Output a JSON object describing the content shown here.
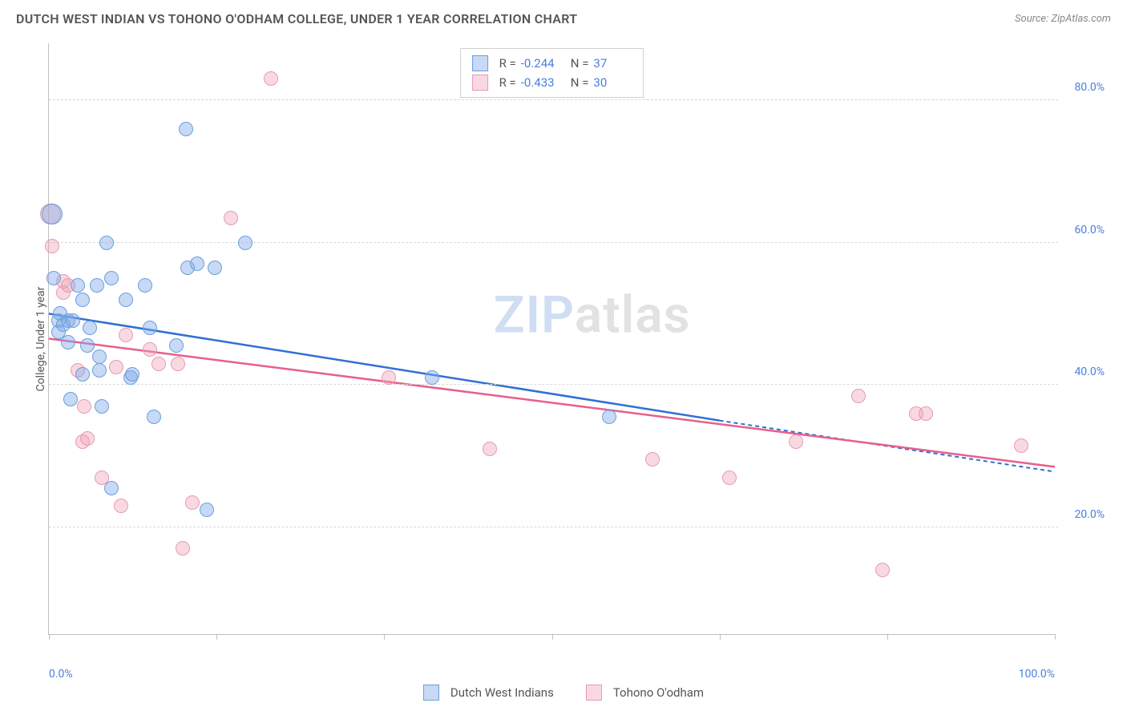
{
  "header": {
    "title": "DUTCH WEST INDIAN VS TOHONO O'ODHAM COLLEGE, UNDER 1 YEAR CORRELATION CHART",
    "source": "Source: ZipAtlas.com"
  },
  "chart": {
    "type": "scatter",
    "ylabel": "College, Under 1 year",
    "background_color": "#ffffff",
    "grid_color": "#d8d8d8",
    "axis_color": "#c0c0c0",
    "label_fontsize": 14,
    "tick_color": "#4a7fe0",
    "title_fontsize": 16,
    "xlim": [
      0,
      105
    ],
    "ylim": [
      5,
      88
    ],
    "yticks": [
      20,
      40,
      60,
      80
    ],
    "ytick_labels": [
      "20.0%",
      "40.0%",
      "60.0%",
      "80.0%"
    ],
    "xticks": [
      0,
      17.5,
      35,
      52.5,
      70,
      87.5,
      105
    ],
    "xtick_labels": [
      "0.0%",
      "",
      "",
      "",
      "",
      "",
      "100.0%"
    ],
    "watermark": {
      "part1": "ZIP",
      "part2": "atlas"
    },
    "series": [
      {
        "name": "Dutch West Indians",
        "color_fill": "rgba(130, 170, 230, 0.45)",
        "color_stroke": "#6a9fe0",
        "line_color": "#2f6fd6",
        "line_width": 2.5,
        "marker_radius": 9,
        "regression": {
          "x1": 0,
          "y1": 50,
          "x2": 70,
          "y2": 35,
          "dash_x1": 70,
          "dash_y1": 35,
          "dash_x2": 105,
          "dash_y2": 27.8
        },
        "stats": {
          "R": "-0.244",
          "N": "37"
        },
        "points": [
          {
            "x": 0.3,
            "y": 64,
            "r": 13
          },
          {
            "x": 0.5,
            "y": 55
          },
          {
            "x": 1,
            "y": 49
          },
          {
            "x": 1,
            "y": 47.5
          },
          {
            "x": 1.2,
            "y": 50
          },
          {
            "x": 1.5,
            "y": 48.5
          },
          {
            "x": 2,
            "y": 49
          },
          {
            "x": 2,
            "y": 46
          },
          {
            "x": 2.3,
            "y": 38
          },
          {
            "x": 2.5,
            "y": 49
          },
          {
            "x": 3,
            "y": 54
          },
          {
            "x": 3.5,
            "y": 52
          },
          {
            "x": 3.5,
            "y": 41.5
          },
          {
            "x": 4,
            "y": 45.5
          },
          {
            "x": 4.3,
            "y": 48
          },
          {
            "x": 5,
            "y": 54
          },
          {
            "x": 5.3,
            "y": 44
          },
          {
            "x": 5.3,
            "y": 42
          },
          {
            "x": 5.5,
            "y": 37
          },
          {
            "x": 6,
            "y": 60
          },
          {
            "x": 6.5,
            "y": 55
          },
          {
            "x": 6.5,
            "y": 25.5
          },
          {
            "x": 8,
            "y": 52
          },
          {
            "x": 8.5,
            "y": 41
          },
          {
            "x": 8.7,
            "y": 41.5
          },
          {
            "x": 10,
            "y": 54
          },
          {
            "x": 10.5,
            "y": 48
          },
          {
            "x": 11,
            "y": 35.5
          },
          {
            "x": 13.3,
            "y": 45.5
          },
          {
            "x": 14.3,
            "y": 76
          },
          {
            "x": 14.5,
            "y": 56.5
          },
          {
            "x": 15.5,
            "y": 57
          },
          {
            "x": 16.5,
            "y": 22.5
          },
          {
            "x": 17.3,
            "y": 56.5
          },
          {
            "x": 20.5,
            "y": 60
          },
          {
            "x": 40,
            "y": 41
          },
          {
            "x": 58.5,
            "y": 35.5
          }
        ]
      },
      {
        "name": "Tohono O'odham",
        "color_fill": "rgba(240, 160, 180, 0.40)",
        "color_stroke": "#e89ab0",
        "line_color": "#e85f8a",
        "line_width": 2.5,
        "marker_radius": 9,
        "regression": {
          "x1": 0,
          "y1": 46.5,
          "x2": 105,
          "y2": 28.5
        },
        "stats": {
          "R": "-0.433",
          "N": "30"
        },
        "points": [
          {
            "x": 0.2,
            "y": 64,
            "r": 13
          },
          {
            "x": 0.3,
            "y": 59.5
          },
          {
            "x": 1.5,
            "y": 53
          },
          {
            "x": 1.5,
            "y": 54.5
          },
          {
            "x": 2,
            "y": 54
          },
          {
            "x": 3,
            "y": 42
          },
          {
            "x": 3.5,
            "y": 32
          },
          {
            "x": 3.7,
            "y": 37
          },
          {
            "x": 4,
            "y": 32.5
          },
          {
            "x": 5.5,
            "y": 27
          },
          {
            "x": 7,
            "y": 42.5
          },
          {
            "x": 7.5,
            "y": 23
          },
          {
            "x": 8,
            "y": 47
          },
          {
            "x": 10.5,
            "y": 45
          },
          {
            "x": 11.5,
            "y": 43
          },
          {
            "x": 13.5,
            "y": 43
          },
          {
            "x": 14,
            "y": 17
          },
          {
            "x": 15,
            "y": 23.5
          },
          {
            "x": 19,
            "y": 63.5
          },
          {
            "x": 23.2,
            "y": 83
          },
          {
            "x": 35.5,
            "y": 41
          },
          {
            "x": 46,
            "y": 31
          },
          {
            "x": 63,
            "y": 29.5
          },
          {
            "x": 71,
            "y": 27
          },
          {
            "x": 78,
            "y": 32
          },
          {
            "x": 84.5,
            "y": 38.5
          },
          {
            "x": 87,
            "y": 14
          },
          {
            "x": 90.5,
            "y": 36
          },
          {
            "x": 91.5,
            "y": 36
          },
          {
            "x": 101.5,
            "y": 31.5
          }
        ]
      }
    ]
  },
  "bottom_legend": [
    {
      "label": "Dutch West Indians",
      "fill": "rgba(130, 170, 230, 0.45)",
      "stroke": "#6a9fe0"
    },
    {
      "label": "Tohono O'odham",
      "fill": "rgba(240, 160, 180, 0.40)",
      "stroke": "#e89ab0"
    }
  ]
}
